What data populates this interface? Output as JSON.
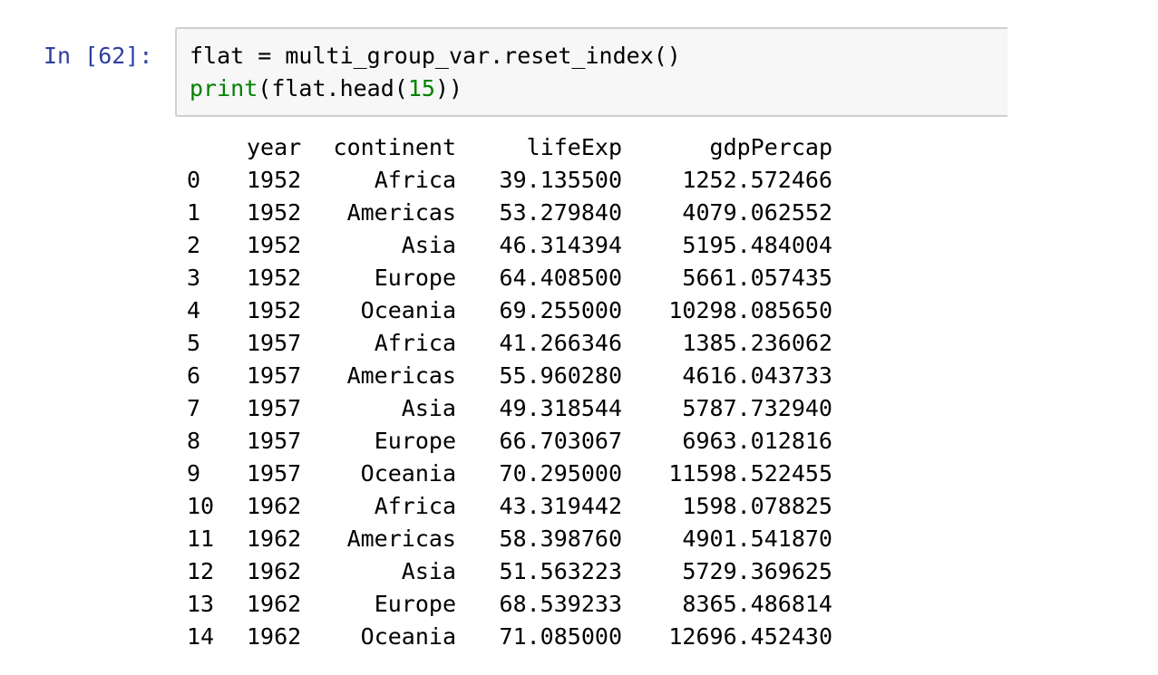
{
  "cell": {
    "prompt": "In [62]:",
    "code": {
      "line1": "flat = multi_group_var.reset_index()",
      "line2_fn": "print",
      "line2_open": "(flat.head(",
      "line2_arg": "15",
      "line2_close": "))"
    }
  },
  "output": {
    "columns": [
      "",
      "year",
      "continent",
      "lifeExp",
      "gdpPercap"
    ],
    "rows": [
      [
        "0",
        "1952",
        "Africa",
        "39.135500",
        "1252.572466"
      ],
      [
        "1",
        "1952",
        "Americas",
        "53.279840",
        "4079.062552"
      ],
      [
        "2",
        "1952",
        "Asia",
        "46.314394",
        "5195.484004"
      ],
      [
        "3",
        "1952",
        "Europe",
        "64.408500",
        "5661.057435"
      ],
      [
        "4",
        "1952",
        "Oceania",
        "69.255000",
        "10298.085650"
      ],
      [
        "5",
        "1957",
        "Africa",
        "41.266346",
        "1385.236062"
      ],
      [
        "6",
        "1957",
        "Americas",
        "55.960280",
        "4616.043733"
      ],
      [
        "7",
        "1957",
        "Asia",
        "49.318544",
        "5787.732940"
      ],
      [
        "8",
        "1957",
        "Europe",
        "66.703067",
        "6963.012816"
      ],
      [
        "9",
        "1957",
        "Oceania",
        "70.295000",
        "11598.522455"
      ],
      [
        "10",
        "1962",
        "Africa",
        "43.319442",
        "1598.078825"
      ],
      [
        "11",
        "1962",
        "Americas",
        "58.398760",
        "4901.541870"
      ],
      [
        "12",
        "1962",
        "Asia",
        "51.563223",
        "5729.369625"
      ],
      [
        "13",
        "1962",
        "Europe",
        "68.539233",
        "8365.486814"
      ],
      [
        "14",
        "1962",
        "Oceania",
        "71.085000",
        "12696.452430"
      ]
    ]
  },
  "colors": {
    "prompt": "#303f9f",
    "builtin": "#008000",
    "number": "#008000",
    "input_background": "#f7f7f7",
    "input_border": "#cfcfcf"
  }
}
